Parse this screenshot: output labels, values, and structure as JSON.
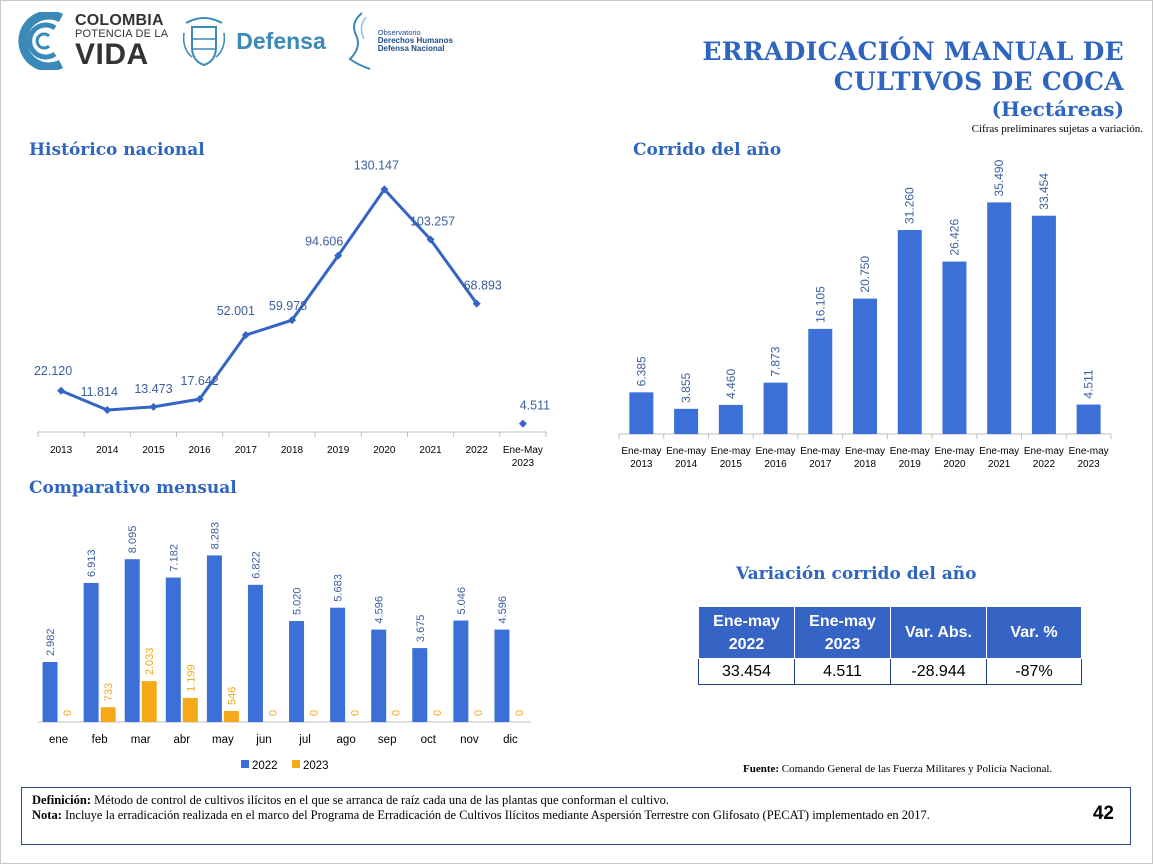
{
  "header": {
    "logo_colombia_line1": "COLOMBIA",
    "logo_colombia_line2": "POTENCIA DE LA",
    "logo_colombia_line3": "VIDA",
    "logo_defensa": "Defensa",
    "logo_obs_line1": "Observatorio",
    "logo_obs_line2": "Derechos Humanos",
    "logo_obs_line3": "Defensa Nacional",
    "title_line1": "ERRADICACIÓN MANUAL DE",
    "title_line2": "CULTIVOS DE COCA",
    "subtitle": "(Hectáreas)",
    "note": "Cifras preliminares sujetas a variación."
  },
  "colors": {
    "accent": "#2e65c0",
    "series_2022": "#3c6fd8",
    "series_2023": "#f5a818",
    "table_header": "#3564c5"
  },
  "chart_data": [
    {
      "type": "line",
      "title": "Histórico nacional",
      "categories": [
        "2013",
        "2014",
        "2015",
        "2016",
        "2017",
        "2018",
        "2019",
        "2020",
        "2021",
        "2022",
        "Ene-May 2023"
      ],
      "values": [
        22120,
        11814,
        13473,
        17642,
        52001,
        59978,
        94606,
        130147,
        103257,
        68893,
        4511
      ],
      "labels": [
        "22.120",
        "11.814",
        "13.473",
        "17.642",
        "52.001",
        "59.978",
        "94.606",
        "130.147",
        "103.257",
        "68.893",
        "4.511"
      ],
      "connected_points": 10,
      "ylim": [
        0,
        140000
      ]
    },
    {
      "type": "bar",
      "title": "Corrido del año",
      "categories": [
        "Ene-may 2013",
        "Ene-may 2014",
        "Ene-may 2015",
        "Ene-may 2016",
        "Ene-may 2017",
        "Ene-may 2018",
        "Ene-may 2019",
        "Ene-may 2020",
        "Ene-may 2021",
        "Ene-may 2022",
        "Ene-may 2023"
      ],
      "values": [
        6385,
        3855,
        4460,
        7873,
        16105,
        20750,
        31260,
        26426,
        35490,
        33454,
        4511
      ],
      "labels": [
        "6.385",
        "3.855",
        "4.460",
        "7.873",
        "16.105",
        "20.750",
        "31.260",
        "26.426",
        "35.490",
        "33.454",
        "4.511"
      ],
      "ylim": [
        0,
        40000
      ]
    },
    {
      "type": "bar",
      "title": "Comparativo mensual",
      "categories": [
        "ene",
        "feb",
        "mar",
        "abr",
        "may",
        "jun",
        "jul",
        "ago",
        "sep",
        "oct",
        "nov",
        "dic"
      ],
      "series": [
        {
          "name": "2022",
          "values": [
            2982,
            6913,
            8095,
            7182,
            8283,
            6822,
            5020,
            5683,
            4596,
            3675,
            5046,
            4596
          ],
          "labels": [
            "2.982",
            "6.913",
            "8.095",
            "7.182",
            "8.283",
            "6.822",
            "5.020",
            "5.683",
            "4.596",
            "3.675",
            "5.046",
            "4.596"
          ]
        },
        {
          "name": "2023",
          "values": [
            0,
            733,
            2033,
            1199,
            546,
            0,
            0,
            0,
            0,
            0,
            0,
            0
          ],
          "labels": [
            "0",
            "733",
            "2.033",
            "1.199",
            "546",
            "0",
            "0",
            "0",
            "0",
            "0",
            "0",
            "0"
          ]
        }
      ],
      "legend": "bottom",
      "ylim": [
        0,
        9000
      ]
    }
  ],
  "variation": {
    "title": "Variación corrido del año",
    "headers": [
      [
        "Ene-may",
        "2022"
      ],
      [
        "Ene-may",
        "2023"
      ],
      [
        "Var. Abs."
      ],
      [
        "Var. %"
      ]
    ],
    "values": [
      "33.454",
      "4.511",
      "-28.944",
      "-87%"
    ]
  },
  "footer": {
    "fuente_label": "Fuente:",
    "fuente_text": "Comando General de las Fuerza Militares y Policía Nacional.",
    "def_label": "Definición:",
    "def_text": "Método de control de cultivos ilícitos en el que se arranca de raíz cada una de las plantas que conforman el cultivo.",
    "nota_label": "Nota:",
    "nota_text": "Incluye la erradicación realizada en el marco del Programa de Erradicación de Cultivos Ilícitos mediante Aspersión Terrestre con Glifosato (PECAT) implementado en 2017.",
    "page_number": "42"
  }
}
